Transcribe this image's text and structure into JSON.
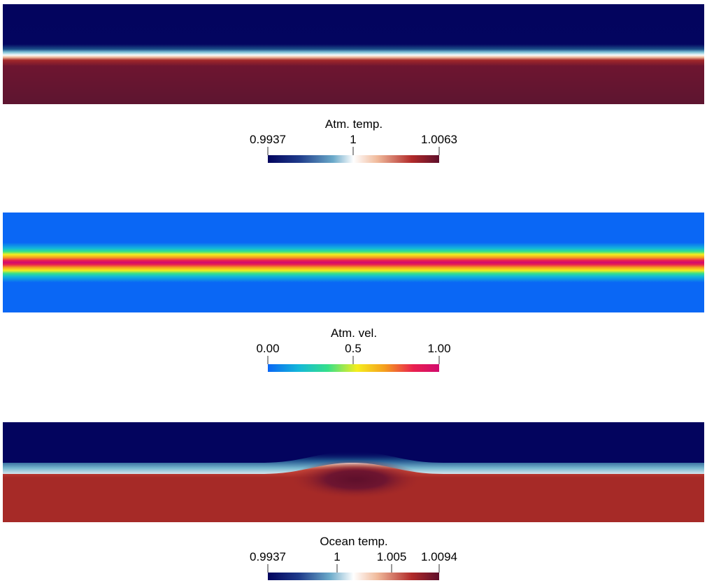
{
  "panels": [
    {
      "id": "atm-temp",
      "colorbar": {
        "title": "Atm. temp.",
        "min": 0.9937,
        "max": 1.0063,
        "labels": [
          "0.9937",
          "1",
          "1.0063"
        ],
        "label_values": [
          0.9937,
          1.0,
          1.0063
        ],
        "colormap": "cool-to-warm",
        "colors": [
          "#03045e",
          "#1e3a8a",
          "#6aa9c9",
          "#ffffff",
          "#f0b99a",
          "#b12a2a",
          "#5e0f2b"
        ]
      },
      "field": {
        "description_colors": {
          "top": "#03045e",
          "bottom": "#5d1530"
        }
      }
    },
    {
      "id": "atm-vel",
      "colorbar": {
        "title": "Atm. vel.",
        "min": 0.0,
        "max": 1.0,
        "labels": [
          "0.00",
          "0.5",
          "1.00"
        ],
        "label_values": [
          0.0,
          0.5,
          1.0
        ],
        "colormap": "jet-like",
        "colors": [
          "#0a67f5",
          "#14b8d9",
          "#36e08a",
          "#f5ee1e",
          "#f5a01e",
          "#e9204f",
          "#d10b6e"
        ]
      },
      "field": {
        "description_colors": {
          "background": "#0a67f5",
          "jet_center": "#d10b6e"
        }
      }
    },
    {
      "id": "ocean-temp",
      "colorbar": {
        "title": "Ocean temp.",
        "min": 0.9937,
        "max": 1.0094,
        "labels": [
          "0.9937",
          "1",
          "1.005",
          "1.0094"
        ],
        "label_values": [
          0.9937,
          1.0,
          1.005,
          1.0094
        ],
        "colormap": "cool-to-warm",
        "colors": [
          "#03045e",
          "#1e3a8a",
          "#6aa9c9",
          "#ffffff",
          "#f0b99a",
          "#b12a2a",
          "#5e0f2b"
        ]
      },
      "field": {
        "description_colors": {
          "top": "#03045e",
          "bottom": "#a62a27",
          "blob": "#5e0f2b"
        }
      }
    }
  ]
}
